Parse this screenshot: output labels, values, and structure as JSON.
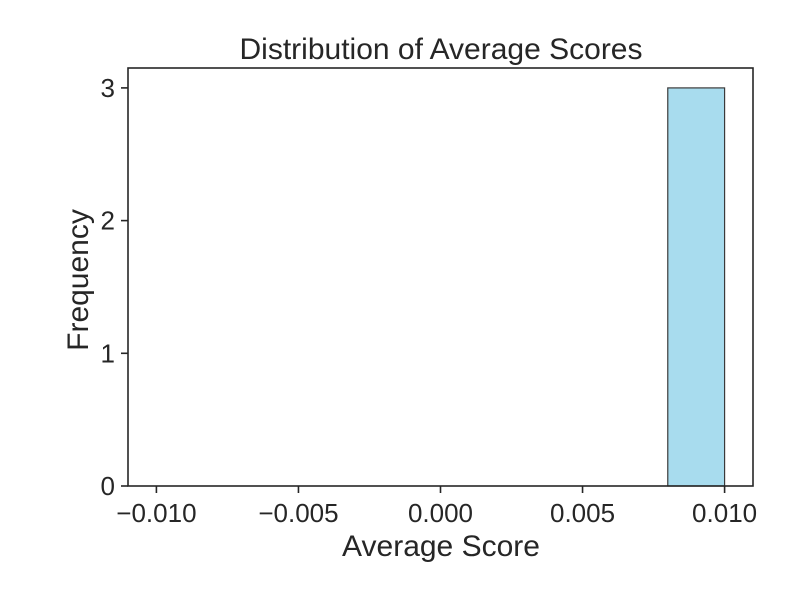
{
  "chart_data": {
    "type": "bar",
    "title": "Distribution of Average Scores",
    "xlabel": "Average Score",
    "ylabel": "Frequency",
    "xlim": [
      -0.011,
      0.011
    ],
    "ylim": [
      0,
      3.15
    ],
    "x_ticks": [
      -0.01,
      -0.005,
      0.0,
      0.005,
      0.01
    ],
    "x_tick_labels": [
      "−0.010",
      "−0.005",
      "0.000",
      "0.005",
      "0.010"
    ],
    "y_ticks": [
      0,
      1,
      2,
      3
    ],
    "y_tick_labels": [
      "0",
      "1",
      "2",
      "3"
    ],
    "bins": [
      {
        "x0": 0.008,
        "x1": 0.01,
        "count": 3
      }
    ],
    "bar_color": "#a8dcee",
    "edge_color": "#3a3a3a",
    "grid": false
  }
}
